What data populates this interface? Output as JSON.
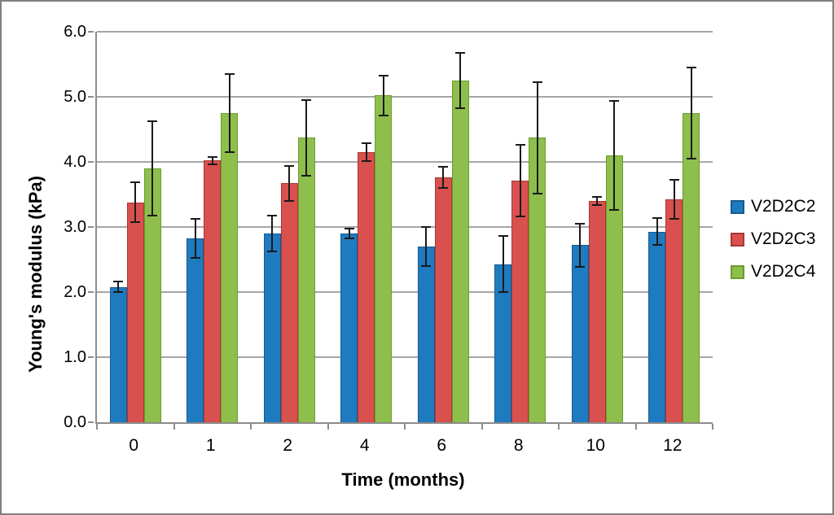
{
  "chart_data": {
    "type": "bar",
    "title": "",
    "xlabel": "Time (months)",
    "ylabel": "Young's modulus (kPa)",
    "categories": [
      "0",
      "1",
      "2",
      "4",
      "6",
      "8",
      "10",
      "12"
    ],
    "y_ticks": [
      "0.0",
      "1.0",
      "2.0",
      "3.0",
      "4.0",
      "5.0",
      "6.0"
    ],
    "ylim": [
      0,
      6
    ],
    "grid": "horizontal",
    "legend_position": "right",
    "error_bars": true,
    "series": [
      {
        "name": "V2D2C2",
        "fill": "#1f7bc0",
        "border": "#175a8e",
        "values": [
          2.08,
          2.82,
          2.9,
          2.9,
          2.7,
          2.43,
          2.72,
          2.93
        ],
        "errors": [
          0.08,
          0.3,
          0.28,
          0.07,
          0.3,
          0.43,
          0.33,
          0.21
        ]
      },
      {
        "name": "V2D2C3",
        "fill": "#d9514e",
        "border": "#a93734",
        "values": [
          3.38,
          4.02,
          3.67,
          4.15,
          3.76,
          3.71,
          3.4,
          3.42
        ],
        "errors": [
          0.31,
          0.06,
          0.27,
          0.14,
          0.16,
          0.55,
          0.06,
          0.3
        ]
      },
      {
        "name": "V2D2C4",
        "fill": "#8ebe4c",
        "border": "#6d9b2e",
        "values": [
          3.9,
          4.75,
          4.37,
          5.02,
          5.25,
          4.37,
          4.1,
          4.75
        ],
        "errors": [
          0.72,
          0.6,
          0.58,
          0.31,
          0.43,
          0.86,
          0.84,
          0.7
        ]
      }
    ]
  },
  "colors": {
    "gridline": "#a6a6a6",
    "axis": "#8c8c8c",
    "frame": "#7f7f7f",
    "error_bar": "#1a1a1a",
    "background": "#ffffff",
    "text": "#000000"
  }
}
